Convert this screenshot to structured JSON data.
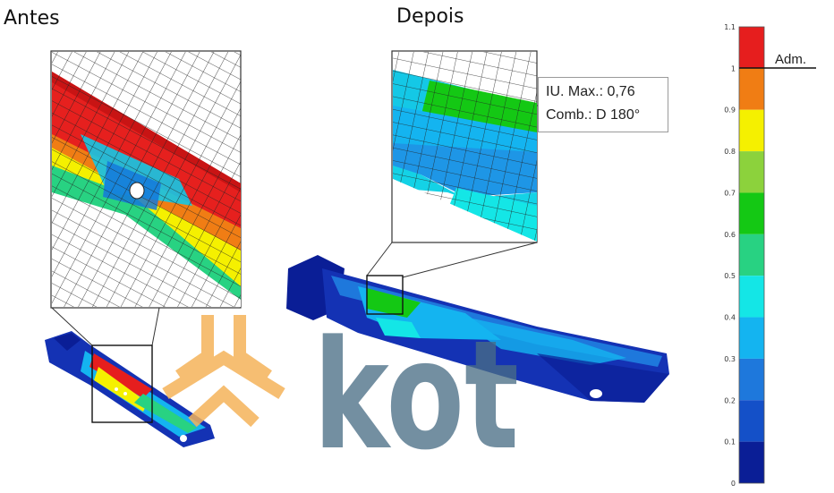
{
  "labels": {
    "before": "Antes",
    "after": "Depois",
    "admissible": "Adm."
  },
  "annotation": {
    "line1": "IU. Max.: 0,76",
    "line2": "Comb.: D 180°"
  },
  "watermark": {
    "text": "kot",
    "logo_color": "#f5b35a",
    "text_color": "#4a6d86"
  },
  "colorbar": {
    "ticks": [
      "1.1",
      "1",
      "0.9",
      "0.8",
      "0.7",
      "0.6",
      "0.5",
      "0.4",
      "0.3",
      "0.2",
      "0.1",
      "0"
    ],
    "bands": [
      "#e61e1e",
      "#f07d14",
      "#f5f000",
      "#8cd23c",
      "#14c814",
      "#28d282",
      "#14e6e6",
      "#14b4f0",
      "#1e78dc",
      "#1450c8",
      "#0a1e96"
    ]
  }
}
